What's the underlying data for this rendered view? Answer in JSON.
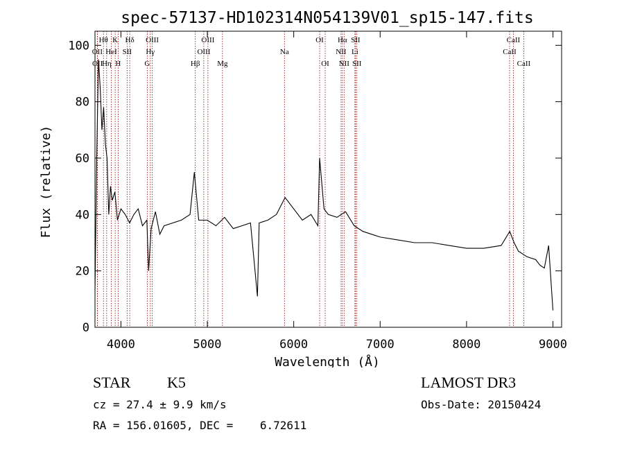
{
  "chart_data": {
    "type": "line",
    "title": "spec-57137-HD102314N054139V01_sp15-147.fits",
    "xlabel": "Wavelength (Å)",
    "ylabel": "Flux (relative)",
    "xlim": [
      3700,
      9100
    ],
    "ylim": [
      0,
      105
    ],
    "x_ticks": [
      4000,
      5000,
      6000,
      7000,
      8000,
      9000
    ],
    "y_ticks": [
      0,
      20,
      40,
      60,
      80,
      100
    ],
    "grid": false,
    "line_color": "#000000",
    "marker_color": "#8b0000",
    "series": [
      {
        "x": [
          3700,
          3720,
          3740,
          3760,
          3780,
          3800,
          3820,
          3840,
          3860,
          3880,
          3900,
          3930,
          3960,
          4000,
          4050,
          4100,
          4150,
          4200,
          4250,
          4300,
          4320,
          4350,
          4400,
          4450,
          4500,
          4600,
          4700,
          4800,
          4850,
          4900,
          5000,
          5100,
          5200,
          5300,
          5400,
          5500,
          5580,
          5600,
          5700,
          5800,
          5900,
          6000,
          6100,
          6200,
          6280,
          6300,
          6350,
          6400,
          6500,
          6600,
          6700,
          6800,
          6900,
          7000,
          7200,
          7400,
          7600,
          7800,
          8000,
          8200,
          8400,
          8500,
          8550,
          8600,
          8700,
          8800,
          8850,
          8900,
          8950,
          9000
        ],
        "y": [
          13,
          60,
          95,
          85,
          70,
          78,
          65,
          60,
          40,
          50,
          45,
          48,
          38,
          42,
          40,
          37,
          40,
          42,
          36,
          38,
          20,
          35,
          41,
          33,
          36,
          37,
          38,
          40,
          55,
          38,
          38,
          36,
          39,
          35,
          36,
          37,
          11,
          37,
          38,
          40,
          46,
          42,
          38,
          40,
          36,
          60,
          42,
          40,
          39,
          41,
          36,
          34,
          33,
          32,
          31,
          30,
          30,
          29,
          28,
          28,
          29,
          34,
          30,
          27,
          25,
          24,
          22,
          21,
          29,
          6
        ]
      }
    ],
    "line_markers": [
      {
        "label": "Hθ",
        "x": 3798,
        "row": 1
      },
      {
        "label": "OII",
        "x": 3727,
        "row": 2
      },
      {
        "label": "OII",
        "x": 3729,
        "row": 3
      },
      {
        "label": "K",
        "x": 3934,
        "row": 1
      },
      {
        "label": "HeI",
        "x": 3889,
        "row": 2
      },
      {
        "label": "Hη",
        "x": 3835,
        "row": 3
      },
      {
        "label": "H",
        "x": 3968,
        "row": 3
      },
      {
        "label": "Hδ",
        "x": 4102,
        "row": 1
      },
      {
        "label": "SII",
        "x": 4072,
        "row": 2
      },
      {
        "label": "OIII",
        "x": 4363,
        "row": 1
      },
      {
        "label": "Hγ",
        "x": 4340,
        "row": 2
      },
      {
        "label": "G",
        "x": 4305,
        "row": 3
      },
      {
        "label": "Hβ",
        "x": 4861,
        "row": 3
      },
      {
        "label": "OIII",
        "x": 5007,
        "row": 1
      },
      {
        "label": "OIII",
        "x": 4959,
        "row": 2
      },
      {
        "label": "Mg",
        "x": 5175,
        "row": 3
      },
      {
        "label": "Na",
        "x": 5893,
        "row": 2
      },
      {
        "label": "OI",
        "x": 6300,
        "row": 1
      },
      {
        "label": "OI",
        "x": 6364,
        "row": 3
      },
      {
        "label": "Hα",
        "x": 6563,
        "row": 1
      },
      {
        "label": "SII",
        "x": 6716,
        "row": 1
      },
      {
        "label": "NII",
        "x": 6548,
        "row": 2
      },
      {
        "label": "Li",
        "x": 6708,
        "row": 2
      },
      {
        "label": "NII",
        "x": 6583,
        "row": 3
      },
      {
        "label": "SII",
        "x": 6731,
        "row": 3
      },
      {
        "label": "CaII",
        "x": 8542,
        "row": 1
      },
      {
        "label": "CaII",
        "x": 8498,
        "row": 2
      },
      {
        "label": "CaII",
        "x": 8662,
        "row": 3
      }
    ]
  },
  "info": {
    "object_class": "STAR",
    "subclass": "K5",
    "survey": "LAMOST DR3",
    "cz": "cz = 27.4 ± 9.9 km/s",
    "obs_date": "Obs-Date: 20150424",
    "coords": "RA = 156.01605, DEC =    6.72611"
  }
}
